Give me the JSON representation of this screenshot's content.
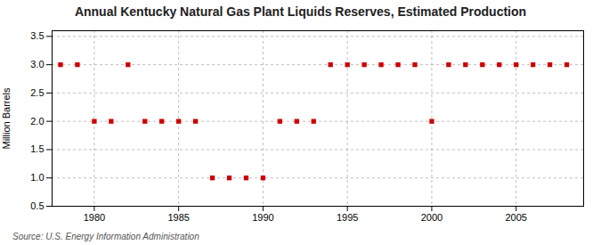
{
  "chart_data": {
    "type": "scatter",
    "title": "Annual Kentucky Natural Gas Plant Liquids Reserves, Estimated Production",
    "ylabel": "Million Barrels",
    "source": "Source: U.S. Energy Information Administration",
    "x": [
      1978,
      1979,
      1980,
      1981,
      1982,
      1983,
      1984,
      1985,
      1986,
      1987,
      1988,
      1989,
      1990,
      1991,
      1992,
      1993,
      1994,
      1995,
      1996,
      1997,
      1998,
      1999,
      2000,
      2001,
      2002,
      2003,
      2004,
      2005,
      2006,
      2007,
      2008
    ],
    "values": [
      3.0,
      3.0,
      2.0,
      2.0,
      3.0,
      2.0,
      2.0,
      2.0,
      2.0,
      1.0,
      1.0,
      1.0,
      1.0,
      2.0,
      2.0,
      2.0,
      3.0,
      3.0,
      3.0,
      3.0,
      3.0,
      3.0,
      2.0,
      3.0,
      3.0,
      3.0,
      3.0,
      3.0,
      3.0,
      3.0,
      3.0
    ],
    "color": "#cc0000",
    "marker": "square",
    "xlim": [
      1977.5,
      2009
    ],
    "xticks": [
      1980,
      1985,
      1990,
      1995,
      2000,
      2005
    ],
    "ylim": [
      0.5,
      3.6
    ],
    "yticks": [
      0.5,
      {
        "value": 1.0,
        "label": "1.0"
      },
      1.5,
      {
        "value": 2.0,
        "label": "2.0"
      },
      2.5,
      {
        "value": 3.0,
        "label": "3.0"
      },
      3.5
    ],
    "grid": true
  }
}
